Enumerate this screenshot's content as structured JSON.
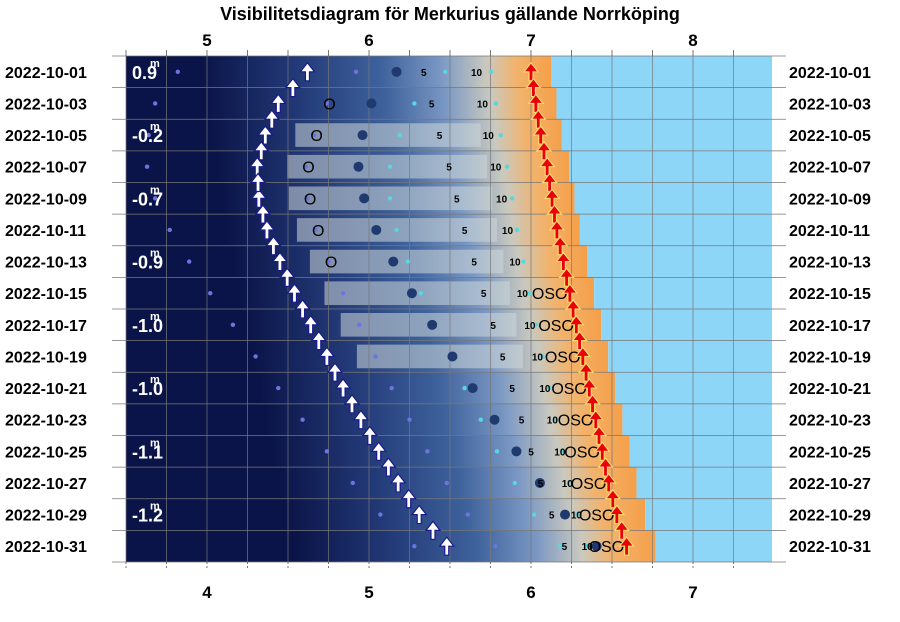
{
  "chart_data": {
    "type": "visibility-diagram",
    "title": "Visibilitetsdiagram för Merkurius gällande Norrköping",
    "top_axis_ticks": [
      "5",
      "6",
      "7",
      "8"
    ],
    "bottom_axis_ticks": [
      "4",
      "5",
      "6",
      "7"
    ],
    "dates": [
      "2022-10-01",
      "2022-10-03",
      "2022-10-05",
      "2022-10-07",
      "2022-10-09",
      "2022-10-11",
      "2022-10-13",
      "2022-10-15",
      "2022-10-17",
      "2022-10-19",
      "2022-10-21",
      "2022-10-23",
      "2022-10-25",
      "2022-10-27",
      "2022-10-29",
      "2022-10-31"
    ],
    "magnitudes": [
      {
        "row": 0,
        "text": "0.9"
      },
      {
        "row": 2,
        "text": "-0.2"
      },
      {
        "row": 4,
        "text": "-0.7"
      },
      {
        "row": 6,
        "text": "-0.9"
      },
      {
        "row": 8,
        "text": "-1.0"
      },
      {
        "row": 10,
        "text": "-1.0"
      },
      {
        "row": 12,
        "text": "-1.1"
      },
      {
        "row": 14,
        "text": "-1.2"
      }
    ],
    "magnitude_unit": "m",
    "sunrise_arrow_hours": [
      6.0,
      6.03,
      6.06,
      6.1,
      6.13,
      6.16,
      6.2,
      6.24,
      6.28,
      6.32,
      6.36,
      6.4,
      6.44,
      6.48,
      6.53,
      6.59
    ],
    "merkurius_rise_hours": [
      4.62,
      4.44,
      4.36,
      4.31,
      4.32,
      4.37,
      4.45,
      4.54,
      4.64,
      4.74,
      4.84,
      4.95,
      5.06,
      5.18,
      5.31,
      5.48
    ],
    "azimuth_labels": [
      {
        "row": 1,
        "text": "O"
      },
      {
        "row": 2,
        "text": "O"
      },
      {
        "row": 3,
        "text": "O"
      },
      {
        "row": 4,
        "text": "O"
      },
      {
        "row": 5,
        "text": "O"
      },
      {
        "row": 6,
        "text": "O"
      },
      {
        "row": 7,
        "text": "OSO"
      },
      {
        "row": 8,
        "text": "OSO"
      },
      {
        "row": 9,
        "text": "OSO"
      },
      {
        "row": 10,
        "text": "OSO"
      },
      {
        "row": 11,
        "text": "OSO"
      },
      {
        "row": 12,
        "text": "OSO"
      },
      {
        "row": 13,
        "text": "OSO"
      },
      {
        "row": 14,
        "text": "OSO"
      },
      {
        "row": 15,
        "text": "OSO"
      }
    ],
    "altitude_labels": [
      "5",
      "10"
    ],
    "colors": {
      "night": "#0b1448",
      "dawn_blue": "#3a5f9a",
      "twilight_orange": "#f5a04a",
      "day": "#8ed6f8",
      "sun_arrow": "#e8000b",
      "rise_arrow": "#1a1a8c"
    }
  }
}
